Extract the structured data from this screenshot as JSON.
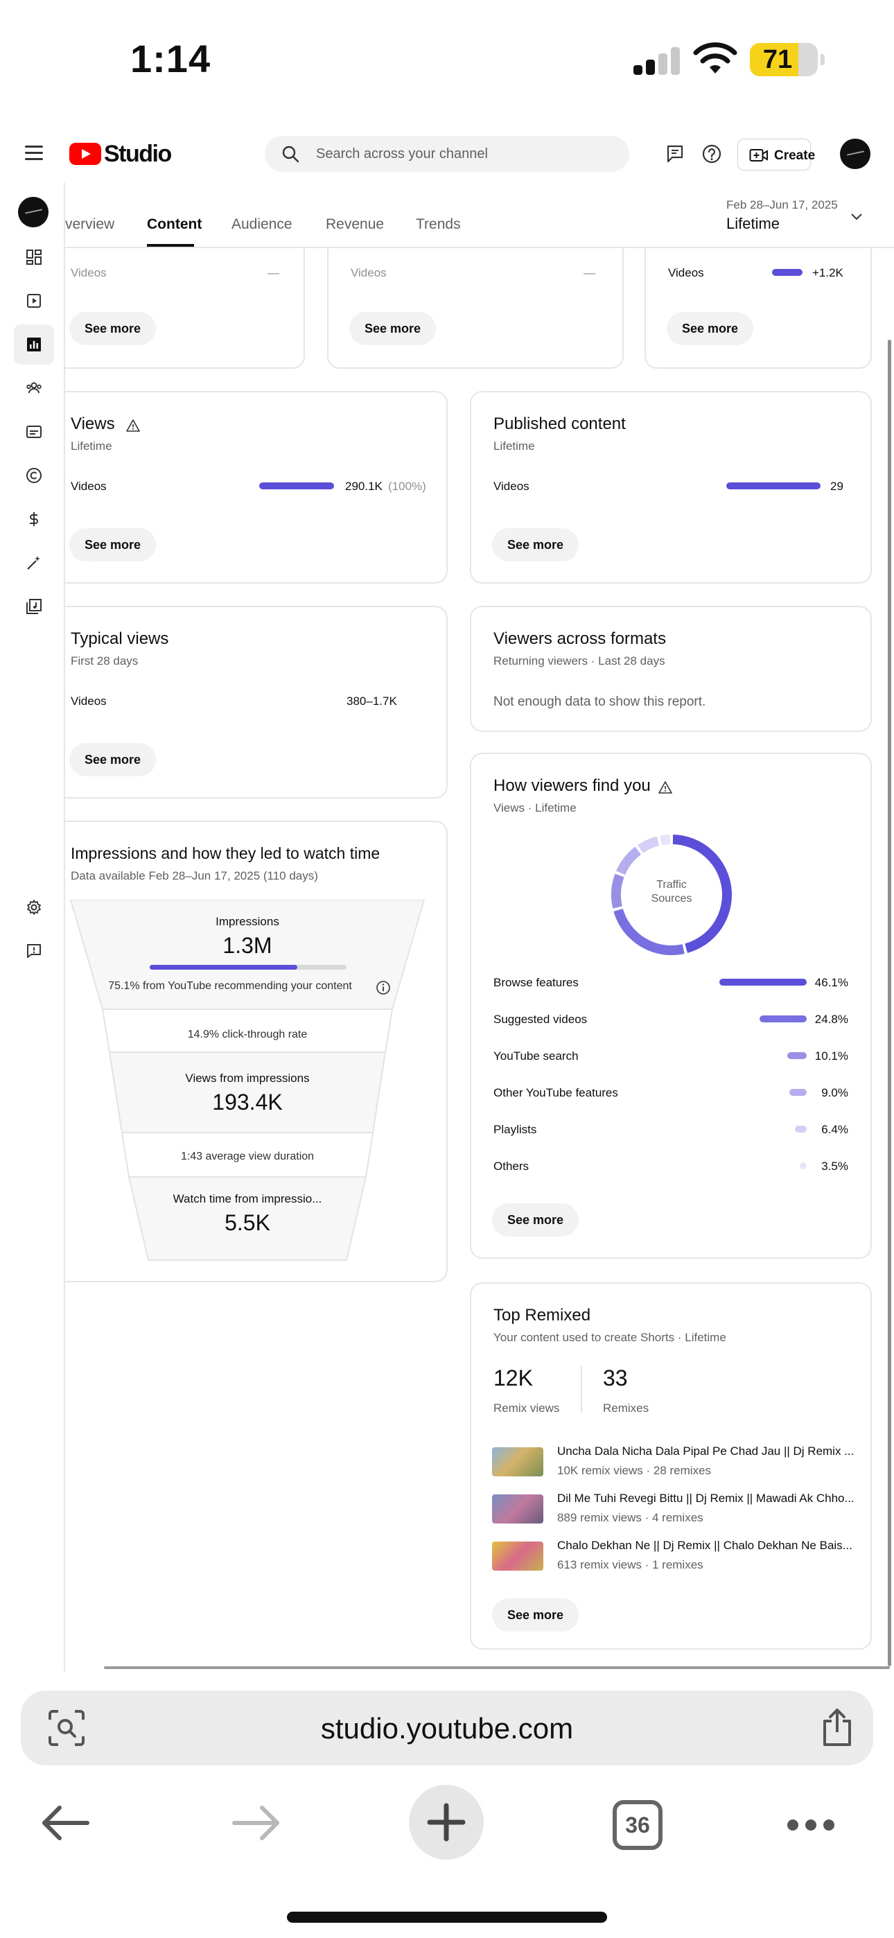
{
  "status_bar": {
    "time": "1:14",
    "battery": "71"
  },
  "header": {
    "app_name": "Studio",
    "search_placeholder": "Search across your channel",
    "create_label": "Create"
  },
  "tabs": {
    "items": [
      "verview",
      "Content",
      "Audience",
      "Revenue",
      "Trends"
    ],
    "active": "Content",
    "date_range": "Feb 28–Jun 17, 2025",
    "period": "Lifetime"
  },
  "top_partial_cards": [
    {
      "row_label": "Videos",
      "row_value": "—",
      "button": "See more"
    },
    {
      "row_label": "Videos",
      "row_value": "—",
      "button": "See more"
    },
    {
      "row_label": "Videos",
      "row_value": "+1.2K",
      "button": "See more"
    }
  ],
  "views_card": {
    "title": "Views",
    "subtitle": "Lifetime",
    "row_label": "Videos",
    "row_value": "290.1K",
    "row_pct": "(100%)",
    "button": "See more"
  },
  "published_card": {
    "title": "Published content",
    "subtitle": "Lifetime",
    "row_label": "Videos",
    "row_value": "29",
    "button": "See more"
  },
  "typical_views_card": {
    "title": "Typical views",
    "subtitle": "First 28 days",
    "row_label": "Videos",
    "row_value": "380–1.7K",
    "button": "See more"
  },
  "formats_card": {
    "title": "Viewers across formats",
    "subtitle": "Returning viewers · Last 28 days",
    "message": "Not enough data to show this report."
  },
  "impressions_card": {
    "title": "Impressions and how they led to watch time",
    "subtitle": "Data available Feb 28–Jun 17, 2025 (110 days)",
    "impressions_label": "Impressions",
    "impressions_value": "1.3M",
    "recommend_fraction": 0.751,
    "recommend_text": "75.1% from YouTube recommending your content",
    "ctr_text": "14.9% click-through rate",
    "views_label": "Views from impressions",
    "views_value": "193.4K",
    "avd_text": "1:43 average view duration",
    "watch_label": "Watch time from impressio...",
    "watch_value": "5.5K"
  },
  "traffic_card": {
    "title": "How viewers find you",
    "subtitle": "Views · Lifetime",
    "donut_label_1": "Traffic",
    "donut_label_2": "Sources",
    "sources": [
      {
        "name": "Browse features",
        "pct": "46.1%",
        "value": 46.1,
        "color": "#5b4ed8"
      },
      {
        "name": "Suggested videos",
        "pct": "24.8%",
        "value": 24.8,
        "color": "#7a6fe0"
      },
      {
        "name": "YouTube search",
        "pct": "10.1%",
        "value": 10.1,
        "color": "#9990e6"
      },
      {
        "name": "Other YouTube features",
        "pct": "9.0%",
        "value": 9.0,
        "color": "#b5aeee"
      },
      {
        "name": "Playlists",
        "pct": "6.4%",
        "value": 6.4,
        "color": "#d3cff5"
      },
      {
        "name": "Others",
        "pct": "3.5%",
        "value": 3.5,
        "color": "#e6e4f8"
      }
    ],
    "button": "See more"
  },
  "remix_card": {
    "title": "Top Remixed",
    "subtitle": "Your content used to create Shorts · Lifetime",
    "remix_views_value": "12K",
    "remix_views_label": "Remix views",
    "remixes_value": "33",
    "remixes_label": "Remixes",
    "items": [
      {
        "title": "Uncha Dala Nicha Dala Pipal Pe Chad Jau || Dj Remix ...",
        "meta": "10K remix views · 28 remixes"
      },
      {
        "title": "Dil Me Tuhi Revegi Bittu || Dj Remix || Mawadi Ak Chho...",
        "meta": "889 remix views · 4 remixes"
      },
      {
        "title": "Chalo Dekhan Ne || Dj Remix || Chalo Dekhan Ne Bais...",
        "meta": "613 remix views · 1 remixes"
      }
    ],
    "button": "See more"
  },
  "browser": {
    "url": "studio.youtube.com",
    "tab_count": "36"
  }
}
